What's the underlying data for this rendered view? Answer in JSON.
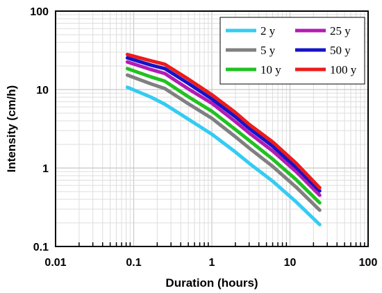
{
  "chart_data": {
    "type": "line",
    "title": "",
    "xlabel": "Duration (hours)",
    "ylabel": "Intensity (cm/h)",
    "x_scale": "log",
    "y_scale": "log",
    "xlim": [
      0.01,
      100
    ],
    "ylim": [
      0.1,
      100
    ],
    "grid": true,
    "legend_position": "top-right",
    "x_tick_labels": [
      "0.01",
      "0.1",
      "1",
      "10",
      "100"
    ],
    "y_tick_labels": [
      "0.1",
      "1",
      "10",
      "100"
    ],
    "x": [
      0.083,
      0.167,
      0.25,
      0.5,
      1,
      2,
      3,
      6,
      12,
      24
    ],
    "series": [
      {
        "name": "2 y",
        "color": "#33ccf2",
        "values": [
          10.7,
          8.0,
          6.5,
          4.2,
          2.7,
          1.6,
          1.15,
          0.68,
          0.37,
          0.19
        ]
      },
      {
        "name": "5 y",
        "color": "#808080",
        "values": [
          15.3,
          11.8,
          10.3,
          6.6,
          4.3,
          2.5,
          1.8,
          1.05,
          0.57,
          0.29
        ]
      },
      {
        "name": "10 y",
        "color": "#22c122",
        "values": [
          18.5,
          14.5,
          12.8,
          8.1,
          5.3,
          3.1,
          2.25,
          1.3,
          0.71,
          0.36
        ]
      },
      {
        "name": "25 y",
        "color": "#b31bb3",
        "values": [
          22.5,
          18.0,
          16.0,
          10.2,
          6.7,
          3.9,
          2.8,
          1.65,
          0.9,
          0.45
        ]
      },
      {
        "name": "50 y",
        "color": "#1414c8",
        "values": [
          25.3,
          20.5,
          18.5,
          12.0,
          7.6,
          4.5,
          3.2,
          1.9,
          1.02,
          0.51
        ]
      },
      {
        "name": "100 y",
        "color": "#ee1b1b",
        "values": [
          28.0,
          23.2,
          21.0,
          13.6,
          8.6,
          5.1,
          3.6,
          2.15,
          1.15,
          0.56
        ]
      }
    ]
  }
}
